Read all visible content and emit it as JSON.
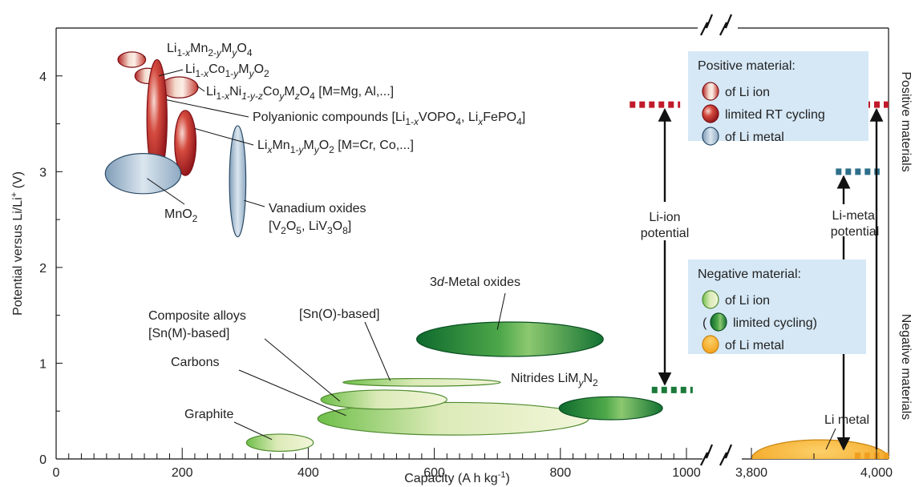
{
  "chart_data": {
    "type": "scatter",
    "xlabel": "Capacity  (A h kg",
    "xlabel_sup": "-1",
    "xlabel_tail": ")",
    "ylabel": "Potential versus Li/Li",
    "ylabel_sup": "+",
    "ylabel_tail": " (V)",
    "xlim": [
      0,
      1000
    ],
    "xlim_broken": [
      3800,
      4000
    ],
    "ylim": [
      0,
      4.5
    ],
    "x_ticks": [
      "0",
      "200",
      "400",
      "600",
      "800",
      "1000"
    ],
    "x_ticks_broken": [
      "3,800",
      "4,000"
    ],
    "y_ticks": [
      "0",
      "1",
      "2",
      "3",
      "4"
    ],
    "right_labels": {
      "top": "Positive materials",
      "bottom": "Negative materials"
    },
    "regions": [
      {
        "id": "limn2o4",
        "kind": "li_ion_positive",
        "cx": 120,
        "cy": 4.17,
        "rx": 22,
        "ry": 0.08,
        "label_parts": [
          [
            "Li",
            ""
          ],
          [
            "1-",
            ".sub"
          ],
          [
            "x",
            "sub-i"
          ],
          [
            "Mn",
            ""
          ],
          [
            "2-",
            ".sub"
          ],
          [
            "y",
            "sub-i"
          ],
          [
            "M",
            ""
          ],
          [
            "y",
            "sub-i"
          ],
          [
            "O",
            ""
          ],
          [
            "4",
            "sub"
          ]
        ]
      },
      {
        "id": "licoo2",
        "kind": "li_ion_positive",
        "cx": 145,
        "cy": 4.0,
        "rx": 20,
        "ry": 0.08,
        "label_parts": [
          [
            "Li",
            ""
          ],
          [
            "1-",
            "sub"
          ],
          [
            "x",
            "sub-i"
          ],
          [
            "Co",
            ""
          ],
          [
            "1-",
            "sub"
          ],
          [
            "y",
            "sub-i"
          ],
          [
            "M",
            ""
          ],
          [
            "y",
            "sub-i"
          ],
          [
            "O",
            ""
          ],
          [
            "2",
            "sub"
          ]
        ]
      },
      {
        "id": "linicomo2",
        "kind": "li_ion_positive",
        "cx": 195,
        "cy": 3.88,
        "rx": 30,
        "ry": 0.11,
        "label_parts": [
          [
            "Li",
            ""
          ],
          [
            "1-",
            "sub"
          ],
          [
            "x",
            "sub-i"
          ],
          [
            "Ni",
            ""
          ],
          [
            "1-y-z",
            "sub-i"
          ],
          [
            "Co",
            ""
          ],
          [
            "y",
            "sub-i"
          ],
          [
            "M",
            ""
          ],
          [
            "z",
            "sub-i"
          ],
          [
            "O",
            ""
          ],
          [
            "4",
            "sub"
          ],
          [
            " [M=Mg, Al,...]",
            ""
          ]
        ]
      },
      {
        "id": "polyanionic",
        "kind": "limited_rt",
        "cx": 160,
        "cy": 3.55,
        "rx": 16,
        "ry": 0.62,
        "label_parts": [
          [
            "Polyanionic compounds [Li",
            ""
          ],
          [
            "1-",
            "sub"
          ],
          [
            "x",
            "sub-i"
          ],
          [
            "VOPO",
            ""
          ],
          [
            "4",
            "sub"
          ],
          [
            ", Li",
            ""
          ],
          [
            "x",
            "sub-i"
          ],
          [
            "FePO",
            ""
          ],
          [
            "4",
            "sub"
          ],
          [
            "]",
            ""
          ]
        ]
      },
      {
        "id": "limnmo2",
        "kind": "limited_rt",
        "cx": 205,
        "cy": 3.3,
        "rx": 17,
        "ry": 0.34,
        "label_parts": [
          [
            "Li",
            ""
          ],
          [
            "x",
            "sub-i"
          ],
          [
            "Mn",
            ""
          ],
          [
            "1-",
            "sub"
          ],
          [
            "y",
            "sub-i"
          ],
          [
            "M",
            ""
          ],
          [
            "y",
            "sub-i"
          ],
          [
            "O",
            ""
          ],
          [
            "2",
            "sub"
          ],
          [
            "  [M=Cr, Co,...]",
            ""
          ]
        ]
      },
      {
        "id": "mno2",
        "kind": "li_metal_positive",
        "cx": 138,
        "cy": 2.98,
        "rx": 60,
        "ry": 0.21,
        "label_parts": [
          [
            "MnO",
            ""
          ],
          [
            "2",
            "sub"
          ]
        ]
      },
      {
        "id": "vanadium",
        "kind": "li_metal_positive",
        "cx": 288,
        "cy": 2.9,
        "rx": 13,
        "ry": 0.58,
        "label_lines": [
          [
            [
              "Vanadium oxides",
              ""
            ]
          ],
          [
            [
              "[V",
              ""
            ],
            [
              "2",
              "sub"
            ],
            [
              "O",
              ""
            ],
            [
              "5",
              "sub"
            ],
            [
              ", LiV",
              ""
            ],
            [
              "3",
              "sub"
            ],
            [
              "O",
              ""
            ],
            [
              "8",
              "sub"
            ],
            [
              "]",
              ""
            ]
          ]
        ]
      },
      {
        "id": "graphite",
        "kind": "li_ion_negative",
        "cx": 355,
        "cy": 0.17,
        "rx": 53,
        "ry": 0.09,
        "label_parts": [
          [
            "Graphite",
            ""
          ]
        ]
      },
      {
        "id": "carbons",
        "kind": "li_ion_negative",
        "cx": 630,
        "cy": 0.42,
        "rx": 215,
        "ry": 0.17,
        "label_parts": [
          [
            "Carbons",
            ""
          ]
        ]
      },
      {
        "id": "composite",
        "kind": "li_ion_negative",
        "cx": 520,
        "cy": 0.62,
        "rx": 100,
        "ry": 0.1,
        "label_lines": [
          [
            [
              "Composite alloys",
              ""
            ]
          ],
          [
            [
              "[Sn(M)-based]",
              ""
            ]
          ]
        ]
      },
      {
        "id": "sno",
        "kind": "li_ion_negative",
        "cx": 580,
        "cy": 0.8,
        "rx": 125,
        "ry": 0.04,
        "label_parts": [
          [
            "[Sn(O)-based]",
            ""
          ]
        ]
      },
      {
        "id": "metaloxides",
        "kind": "limited_neg",
        "cx": 720,
        "cy": 1.25,
        "rx": 148,
        "ry": 0.18,
        "label_parts": [
          [
            "3",
            ""
          ],
          [
            "d",
            "i"
          ],
          [
            "-Metal oxides",
            ""
          ]
        ]
      },
      {
        "id": "nitrides",
        "kind": "limited_neg",
        "cx": 880,
        "cy": 0.53,
        "rx": 82,
        "ry": 0.12,
        "label_parts": [
          [
            "Nitrides LiM",
            ""
          ],
          [
            "y",
            "sub-i"
          ],
          [
            "N",
            ""
          ],
          [
            "2",
            "sub"
          ]
        ]
      },
      {
        "id": "limetal",
        "kind": "li_metal_negative",
        "cx_broken": 3910,
        "cy": 0.0,
        "rx_broken": 110,
        "ry": 0.2,
        "label_parts": [
          [
            "Li metal",
            ""
          ]
        ]
      }
    ],
    "potential_markers": [
      {
        "kind": "li_ion",
        "y": 3.7,
        "x1": 910,
        "x2": 990
      },
      {
        "kind": "li_ion_neg",
        "y": 0.72,
        "x1": 945,
        "x2": 1010
      },
      {
        "kind": "li_metal",
        "y": 3.0,
        "x1_broken": 3935,
        "x2_broken": 4005
      }
    ],
    "arrow_labels": {
      "li_ion": [
        "Li-ion",
        "potential"
      ],
      "li_metal": [
        "Li-metal",
        "potential"
      ]
    },
    "legend_positive": {
      "title": "Positive material:",
      "items": [
        {
          "kind": "li_ion_positive",
          "label": "of Li ion"
        },
        {
          "kind": "limited_rt",
          "label": "limited RT cycling"
        },
        {
          "kind": "li_metal_positive",
          "label": "of Li metal"
        }
      ]
    },
    "legend_negative": {
      "title": "Negative material:",
      "items": [
        {
          "kind": "li_ion_negative",
          "label": "of Li ion"
        },
        {
          "kind": "limited_neg",
          "label": "limited cycling)",
          "prefix": "("
        },
        {
          "kind": "li_metal_negative",
          "label": "of Li metal"
        }
      ]
    },
    "colors": {
      "red": "#c0202a",
      "red_dark": "#7e1016",
      "blue": "#a9bfd3",
      "blue_dark": "#2a4a66",
      "green_light": "#e8f0c6",
      "green": "#55b03d",
      "green_dark": "#0f6a2e",
      "orange": "#f6ae25",
      "legend_bg": "#d6e8f6",
      "marker_red": "#c01a2a",
      "marker_blue": "#2d6f8a",
      "marker_green": "#1b7a3a",
      "marker_orange": "#f0a020"
    }
  }
}
